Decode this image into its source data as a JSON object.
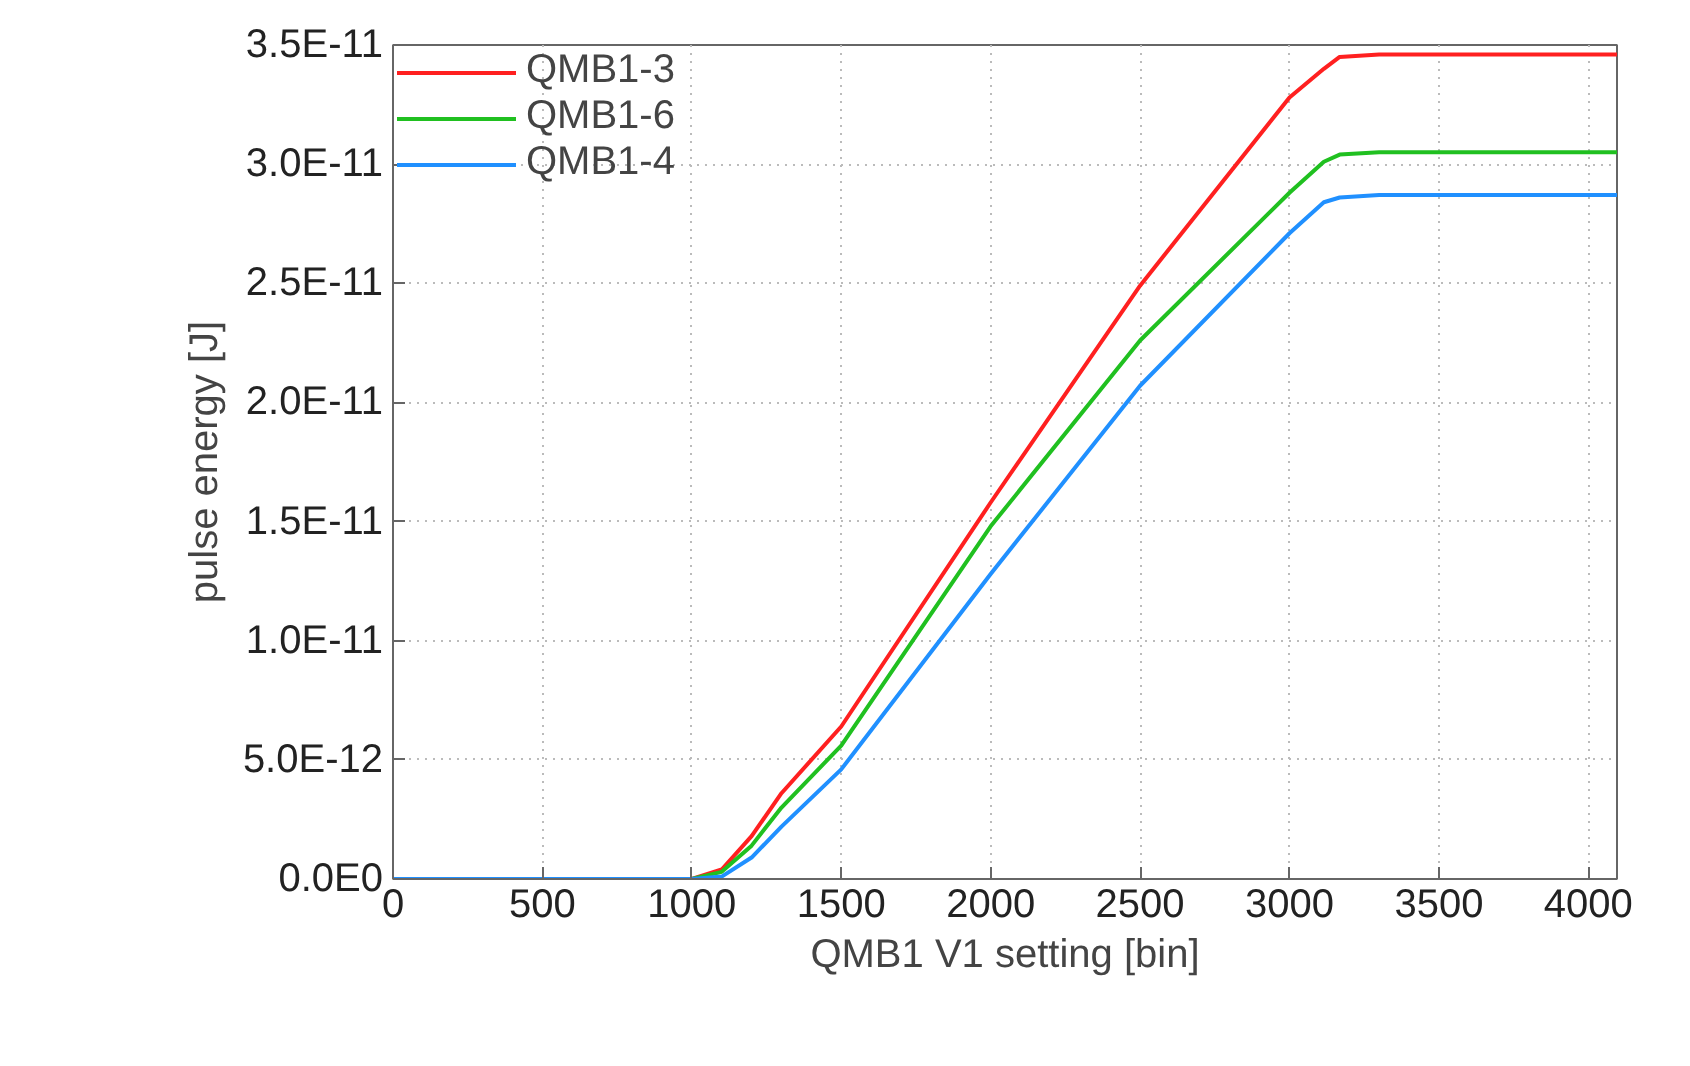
{
  "chart_data": {
    "type": "line",
    "xlabel": "QMB1 V1 setting [bin]",
    "ylabel": "pulse energy [J]",
    "xlim": [
      0,
      4096
    ],
    "xticks": [
      0,
      500,
      1000,
      1500,
      2000,
      2500,
      3000,
      3500,
      4000
    ],
    "ylim": [
      0,
      3.5e-11
    ],
    "yticks": [
      {
        "value": 0,
        "label": "0.0E0"
      },
      {
        "value": 5e-12,
        "label": "5.0E-12"
      },
      {
        "value": 1e-11,
        "label": "1.0E-11"
      },
      {
        "value": 1.5e-11,
        "label": "1.5E-11"
      },
      {
        "value": 2e-11,
        "label": "2.0E-11"
      },
      {
        "value": 2.5e-11,
        "label": "2.5E-11"
      },
      {
        "value": 3e-11,
        "label": "3.0E-11"
      },
      {
        "value": 3.5e-11,
        "label": "3.5E-11"
      }
    ],
    "grid": true,
    "legend": "top left",
    "line_style": "solid",
    "x": [
      0,
      1000,
      1100,
      1200,
      1300,
      1500,
      2000,
      2500,
      3000,
      3115,
      3168,
      3300,
      4096
    ],
    "series": [
      {
        "name": "QMB1-3",
        "color": "#ff2020",
        "values": [
          0,
          0,
          4e-13,
          1.8e-12,
          3.6e-12,
          6.4e-12,
          1.58e-11,
          2.49e-11,
          3.28e-11,
          3.4e-11,
          3.45e-11,
          3.46e-11,
          3.46e-11
        ]
      },
      {
        "name": "QMB1-6",
        "color": "#20c020",
        "values": [
          0,
          0,
          3e-13,
          1.4e-12,
          3e-12,
          5.6e-12,
          1.48e-11,
          2.26e-11,
          2.88e-11,
          3.01e-11,
          3.04e-11,
          3.05e-11,
          3.05e-11
        ]
      },
      {
        "name": "QMB1-4",
        "color": "#2090ff",
        "values": [
          0,
          0,
          1e-13,
          9e-13,
          2.2e-12,
          4.6e-12,
          1.28e-11,
          2.07e-11,
          2.71e-11,
          2.84e-11,
          2.86e-11,
          2.87e-11,
          2.87e-11
        ]
      }
    ]
  }
}
